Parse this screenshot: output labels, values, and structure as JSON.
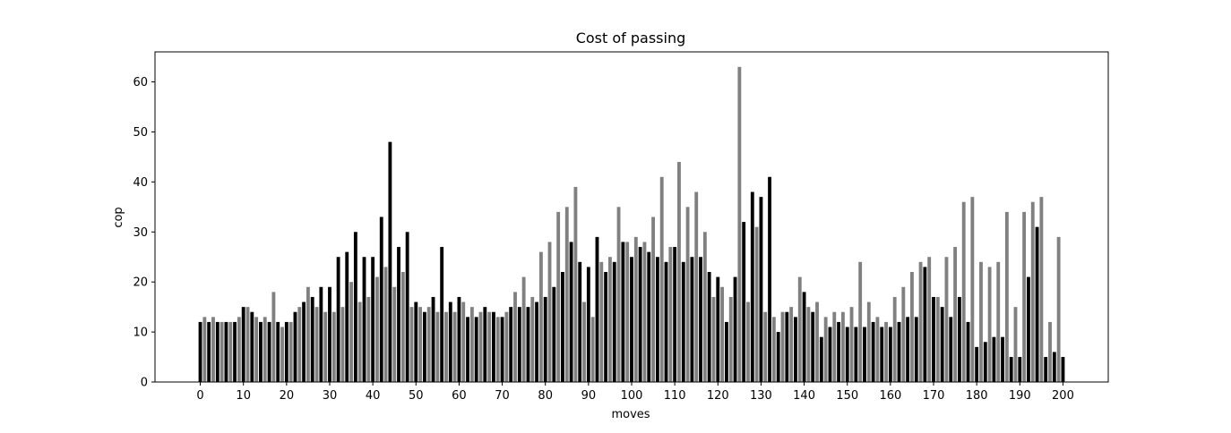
{
  "chart_data": {
    "type": "bar",
    "title": "Cost of passing",
    "xlabel": "moves",
    "ylabel": "cop",
    "x_ticks": [
      0,
      10,
      20,
      30,
      40,
      50,
      60,
      70,
      80,
      90,
      100,
      110,
      120,
      130,
      140,
      150,
      160,
      170,
      180,
      190,
      200
    ],
    "y_ticks": [
      0,
      10,
      20,
      30,
      40,
      50,
      60
    ],
    "xlim": [
      -10.5,
      210.5
    ],
    "ylim": [
      0,
      66
    ],
    "grid": false,
    "colors": {
      "even_moves": "#000000",
      "odd_moves": "#808080"
    },
    "series": [
      {
        "x": [
          0,
          1,
          2,
          3,
          4,
          5,
          6,
          7,
          8,
          9,
          10,
          11,
          12,
          13,
          14,
          15,
          16,
          17,
          18,
          19,
          20,
          21,
          22,
          23,
          24,
          25,
          26,
          27,
          28,
          29,
          30,
          31,
          32,
          33,
          34,
          35,
          36,
          37,
          38,
          39,
          40,
          41,
          42,
          43,
          44,
          45,
          46,
          47,
          48,
          49,
          50,
          51,
          52,
          53,
          54,
          55,
          56,
          57,
          58,
          59,
          60,
          61,
          62,
          63,
          64,
          65,
          66,
          67,
          68,
          69,
          70,
          71,
          72,
          73,
          74,
          75,
          76,
          77,
          78,
          79,
          80,
          81,
          82,
          83,
          84,
          85,
          86,
          87,
          88,
          89,
          90,
          91,
          92,
          93,
          94,
          95,
          96,
          97,
          98,
          99,
          100,
          101,
          102,
          103,
          104,
          105,
          106,
          107,
          108,
          109,
          110,
          111,
          112,
          113,
          114,
          115,
          116,
          117,
          118,
          119,
          120,
          121,
          122,
          123,
          124,
          125,
          126,
          127,
          128,
          129,
          130,
          131,
          132,
          133,
          134,
          135,
          136,
          137,
          138,
          139,
          140,
          141,
          142,
          143,
          144,
          145,
          146,
          147,
          148,
          149,
          150,
          151,
          152,
          153,
          154,
          155,
          156,
          157,
          158,
          159,
          160,
          161,
          162,
          163,
          164,
          165,
          166,
          167,
          168,
          169,
          170,
          171,
          172,
          173,
          174,
          175,
          176,
          177,
          178,
          179,
          180,
          181,
          182,
          183,
          184,
          185,
          186,
          187,
          188,
          189,
          190,
          191,
          192,
          193,
          194,
          195,
          196,
          197,
          198,
          199,
          200
        ],
        "values": [
          12,
          13,
          12,
          13,
          12,
          12,
          12,
          12,
          12,
          13,
          15,
          15,
          14,
          13,
          12,
          13,
          12,
          18,
          12,
          11,
          12,
          12,
          14,
          15,
          16,
          19,
          17,
          15,
          19,
          14,
          19,
          14,
          25,
          15,
          26,
          20,
          30,
          16,
          25,
          17,
          25,
          21,
          33,
          23,
          48,
          19,
          27,
          22,
          30,
          15,
          16,
          15,
          14,
          15,
          17,
          14,
          27,
          14,
          16,
          14,
          17,
          16,
          13,
          15,
          13,
          14,
          15,
          14,
          14,
          13,
          13,
          14,
          15,
          18,
          15,
          21,
          15,
          17,
          16,
          26,
          17,
          28,
          19,
          34,
          22,
          35,
          28,
          39,
          24,
          16,
          23,
          13,
          29,
          24,
          22,
          25,
          24,
          35,
          28,
          28,
          25,
          29,
          27,
          28,
          26,
          33,
          25,
          41,
          24,
          27,
          27,
          44,
          24,
          35,
          25,
          38,
          25,
          30,
          22,
          17,
          21,
          19,
          12,
          17,
          21,
          63,
          32,
          16,
          38,
          31,
          37,
          14,
          41,
          13,
          10,
          14,
          14,
          15,
          13,
          21,
          18,
          15,
          14,
          16,
          9,
          13,
          11,
          14,
          12,
          14,
          11,
          15,
          11,
          24,
          11,
          16,
          12,
          13,
          11,
          12,
          11,
          17,
          12,
          19,
          13,
          22,
          13,
          24,
          23,
          25,
          17,
          17,
          15,
          25,
          13,
          27,
          17,
          36,
          12,
          37,
          7,
          24,
          8,
          23,
          9,
          24,
          9,
          34,
          5,
          15,
          5,
          34,
          21,
          36,
          31,
          37,
          5,
          12,
          6,
          29,
          5
        ]
      }
    ]
  }
}
